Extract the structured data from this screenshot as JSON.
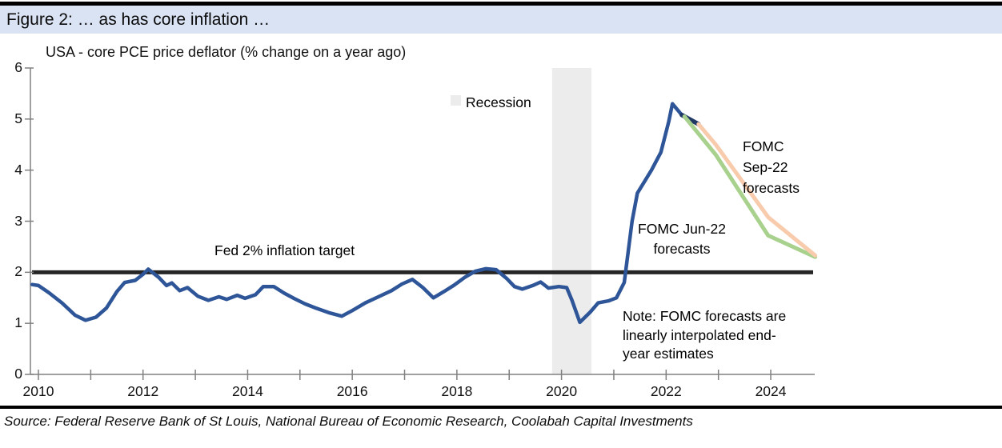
{
  "header": {
    "title": "Figure 2: … as has core inflation …"
  },
  "chart": {
    "subtitle": "USA - core PCE price deflator (% change on a year ago)",
    "legend_label": "Recession",
    "fed_target_label": "Fed 2% inflation target",
    "jun_forecast_label": "FOMC Jun-22\nforecasts",
    "sep_forecast_label": "FOMC\nSep-22\nforecasts",
    "note": "Note: FOMC forecasts are\nlinearly interpolated end-\nyear estimates"
  },
  "footer": {
    "source": "Source: Federal Reserve Bank of St Louis, National Bureau of Economic Research, Coolabah Capital Investments"
  },
  "chart_data": {
    "type": "line",
    "title": "USA - core PCE price deflator (% change on a year ago)",
    "xlabel": "",
    "ylabel": "",
    "x_axis": {
      "min": 2009.87,
      "max": 2024.84,
      "minor_ticks": [
        2010,
        2011,
        2012,
        2013,
        2014,
        2015,
        2016,
        2017,
        2018,
        2019,
        2020,
        2021,
        2022,
        2023,
        2024
      ],
      "labeled_ticks": [
        2010,
        2012,
        2014,
        2016,
        2018,
        2020,
        2022,
        2024
      ],
      "labels": [
        "2010",
        "2012",
        "2014",
        "2016",
        "2018",
        "2020",
        "2022",
        "2024"
      ]
    },
    "y_axis": {
      "min": 0,
      "max": 6,
      "ticks": [
        0,
        1,
        2,
        3,
        4,
        5,
        6
      ],
      "labels": [
        "0",
        "1",
        "2",
        "3",
        "4",
        "5",
        "6"
      ]
    },
    "grid": false,
    "legend_position": "top-center-right",
    "recession_bands": [
      [
        2019.82,
        2020.57
      ]
    ],
    "fed_target": {
      "value": 2,
      "color": "#262626"
    },
    "colors": {
      "band": "#ececec",
      "axis": "#808080"
    },
    "series": [
      {
        "name": "Core PCE actual",
        "color": "#2e5597",
        "width": 4.5,
        "points": [
          [
            2009.88,
            1.76
          ],
          [
            2010.0,
            1.74
          ],
          [
            2010.2,
            1.6
          ],
          [
            2010.45,
            1.4
          ],
          [
            2010.7,
            1.16
          ],
          [
            2010.9,
            1.06
          ],
          [
            2011.1,
            1.12
          ],
          [
            2011.3,
            1.3
          ],
          [
            2011.5,
            1.62
          ],
          [
            2011.65,
            1.8
          ],
          [
            2011.85,
            1.84
          ],
          [
            2012.0,
            1.96
          ],
          [
            2012.1,
            2.06
          ],
          [
            2012.3,
            1.9
          ],
          [
            2012.45,
            1.74
          ],
          [
            2012.55,
            1.79
          ],
          [
            2012.7,
            1.64
          ],
          [
            2012.85,
            1.7
          ],
          [
            2013.05,
            1.53
          ],
          [
            2013.25,
            1.45
          ],
          [
            2013.45,
            1.52
          ],
          [
            2013.6,
            1.47
          ],
          [
            2013.8,
            1.55
          ],
          [
            2013.95,
            1.49
          ],
          [
            2014.15,
            1.56
          ],
          [
            2014.3,
            1.72
          ],
          [
            2014.5,
            1.72
          ],
          [
            2014.7,
            1.59
          ],
          [
            2014.9,
            1.48
          ],
          [
            2015.1,
            1.38
          ],
          [
            2015.3,
            1.3
          ],
          [
            2015.55,
            1.21
          ],
          [
            2015.8,
            1.14
          ],
          [
            2016.0,
            1.25
          ],
          [
            2016.25,
            1.4
          ],
          [
            2016.5,
            1.52
          ],
          [
            2016.75,
            1.64
          ],
          [
            2016.95,
            1.77
          ],
          [
            2017.15,
            1.86
          ],
          [
            2017.35,
            1.7
          ],
          [
            2017.55,
            1.5
          ],
          [
            2017.75,
            1.62
          ],
          [
            2017.95,
            1.75
          ],
          [
            2018.15,
            1.9
          ],
          [
            2018.35,
            2.02
          ],
          [
            2018.55,
            2.07
          ],
          [
            2018.75,
            2.05
          ],
          [
            2018.95,
            1.88
          ],
          [
            2019.1,
            1.72
          ],
          [
            2019.25,
            1.67
          ],
          [
            2019.45,
            1.74
          ],
          [
            2019.6,
            1.81
          ],
          [
            2019.75,
            1.69
          ],
          [
            2019.95,
            1.72
          ],
          [
            2020.1,
            1.7
          ],
          [
            2020.2,
            1.45
          ],
          [
            2020.35,
            1.02
          ],
          [
            2020.55,
            1.22
          ],
          [
            2020.7,
            1.4
          ],
          [
            2020.9,
            1.44
          ],
          [
            2021.05,
            1.5
          ],
          [
            2021.2,
            1.8
          ],
          [
            2021.35,
            3.0
          ],
          [
            2021.45,
            3.55
          ],
          [
            2021.6,
            3.8
          ],
          [
            2021.72,
            4.0
          ],
          [
            2021.9,
            4.35
          ],
          [
            2022.05,
            4.95
          ],
          [
            2022.12,
            5.3
          ],
          [
            2022.3,
            5.08
          ]
        ]
      },
      {
        "name": "Core PCE actual latest",
        "color": "#203864",
        "width": 5.5,
        "points": [
          [
            2022.3,
            5.08
          ],
          [
            2022.62,
            4.9
          ]
        ]
      },
      {
        "name": "FOMC Jun-22 forecasts",
        "color": "#a9d18e",
        "width": 5,
        "points": [
          [
            2022.35,
            5.05
          ],
          [
            2022.95,
            4.3
          ],
          [
            2023.95,
            2.72
          ],
          [
            2024.85,
            2.3
          ]
        ]
      },
      {
        "name": "FOMC Sep-22 forecasts",
        "color": "#f8cbad",
        "width": 5,
        "points": [
          [
            2022.62,
            4.9
          ],
          [
            2022.95,
            4.5
          ],
          [
            2023.95,
            3.08
          ],
          [
            2024.85,
            2.33
          ]
        ]
      }
    ]
  }
}
